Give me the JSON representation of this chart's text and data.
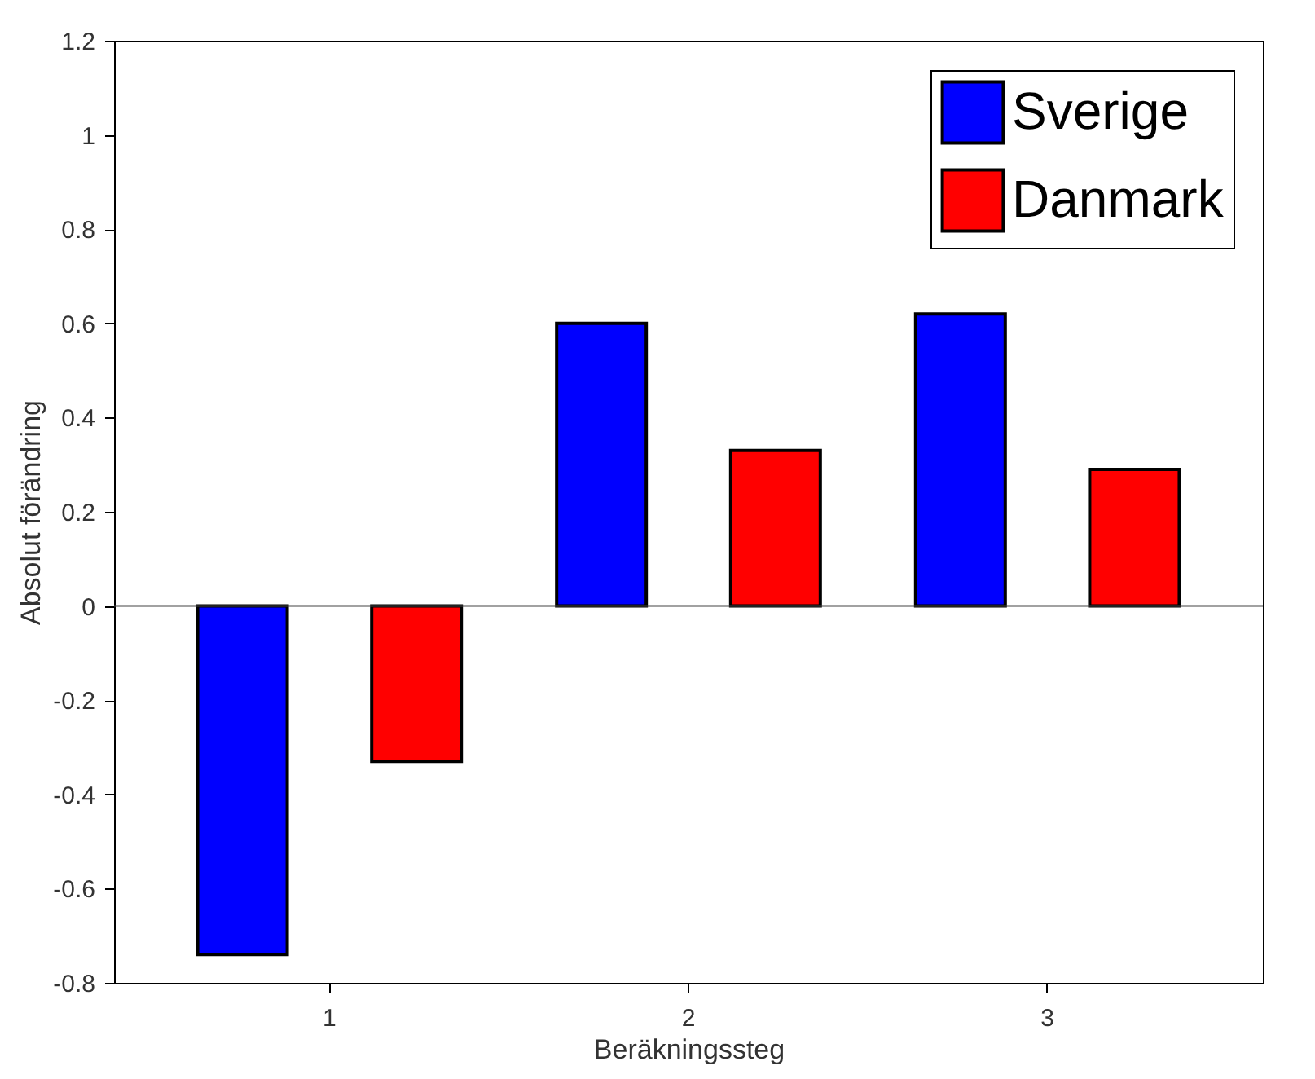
{
  "chart_data": {
    "type": "bar",
    "xlabel": "Beräkningssteg",
    "ylabel": "Absolut förändring",
    "categories": [
      "1",
      "2",
      "3"
    ],
    "series": [
      {
        "name": "Sverige",
        "color": "#0000ff",
        "values": [
          -0.74,
          0.6,
          0.62
        ]
      },
      {
        "name": "Danmark",
        "color": "#ff0000",
        "values": [
          -0.33,
          0.33,
          0.29
        ]
      }
    ],
    "ylim": [
      -0.8,
      1.2
    ],
    "yticks": [
      -0.8,
      -0.6,
      -0.4,
      -0.2,
      0,
      0.2,
      0.4,
      0.6,
      0.8,
      1,
      1.2
    ],
    "ref_lines": [
      {
        "axis": "y",
        "value": 0,
        "color": "#444444"
      }
    ],
    "grid": false,
    "legend": "top right"
  }
}
